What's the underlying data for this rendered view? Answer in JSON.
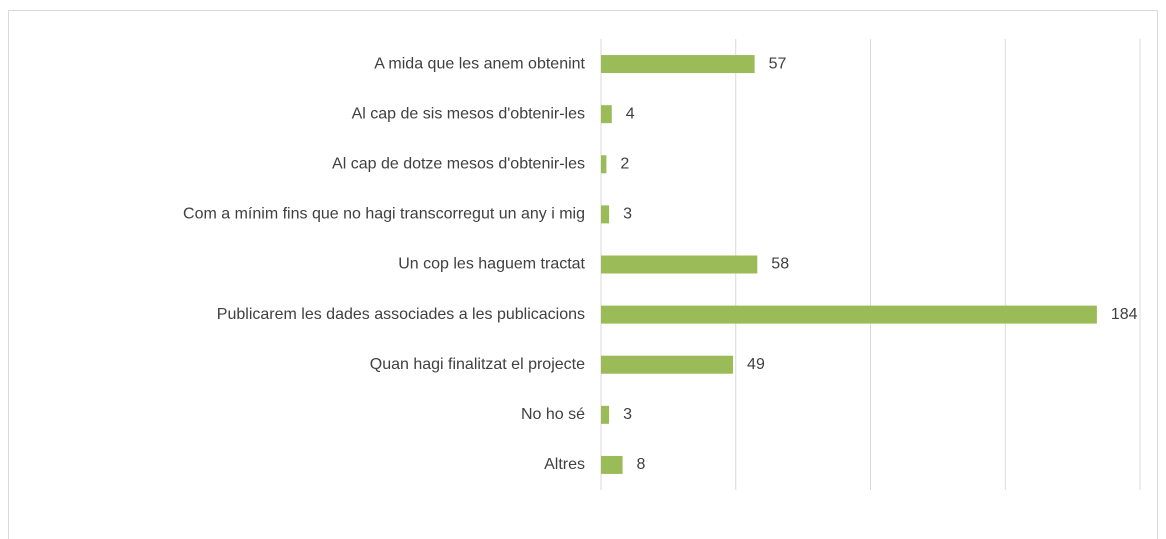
{
  "chart_data": {
    "type": "barh",
    "categories": [
      "A mida que les anem obtenint",
      "Al cap de sis mesos d'obtenir-les",
      "Al cap de dotze mesos d'obtenir-les",
      "Com a mínim fins que no hagi transcorregut un any i mig",
      "Un cop les haguem tractat",
      "Publicarem les dades associades a les publicacions",
      "Quan hagi finalitzat el projecte",
      "No ho sé",
      "Altres"
    ],
    "values": [
      57,
      4,
      2,
      3,
      58,
      184,
      49,
      3,
      8
    ],
    "color": "#9bbb59",
    "xlim": [
      0,
      200
    ],
    "xticks": [
      0,
      50,
      100,
      150,
      200
    ],
    "grid": true
  }
}
